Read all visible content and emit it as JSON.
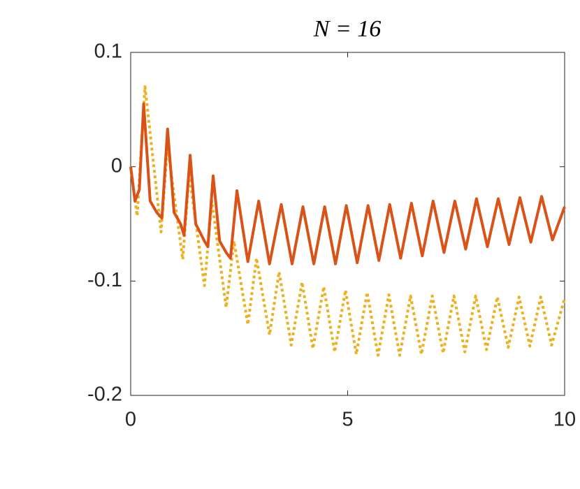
{
  "chart_data": {
    "type": "line",
    "title": "N = 16",
    "xlim": [
      0,
      10
    ],
    "xticks": [
      0,
      5,
      10
    ],
    "ylim": [
      -0.2,
      0.1
    ],
    "yticks": [
      -0.2,
      -0.1,
      0,
      0.1
    ],
    "grid": false,
    "box": true,
    "series": [
      {
        "color": "#d95319",
        "style": "solid",
        "x": [
          0,
          0.1,
          0.2,
          0.3,
          0.45,
          0.6,
          0.72,
          0.85,
          1.0,
          1.15,
          1.23,
          1.37,
          1.5,
          1.7,
          1.78,
          1.9,
          2.05,
          2.2,
          2.3,
          2.45,
          2.7,
          2.95,
          3.2,
          3.47,
          3.72,
          3.97,
          4.22,
          4.47,
          4.72,
          4.97,
          5.22,
          5.47,
          5.72,
          5.97,
          6.22,
          6.47,
          6.72,
          6.97,
          7.22,
          7.47,
          7.72,
          7.97,
          8.22,
          8.47,
          8.72,
          8.97,
          9.22,
          9.47,
          9.72,
          10
        ],
        "values": [
          0,
          -0.03,
          -0.02,
          0.055,
          -0.03,
          -0.04,
          -0.045,
          0.033,
          -0.04,
          -0.05,
          -0.06,
          0.01,
          -0.05,
          -0.065,
          -0.07,
          -0.008,
          -0.065,
          -0.075,
          -0.08,
          -0.021,
          -0.083,
          -0.03,
          -0.085,
          -0.033,
          -0.085,
          -0.035,
          -0.085,
          -0.035,
          -0.085,
          -0.034,
          -0.084,
          -0.034,
          -0.082,
          -0.033,
          -0.08,
          -0.032,
          -0.078,
          -0.03,
          -0.075,
          -0.03,
          -0.072,
          -0.028,
          -0.07,
          -0.028,
          -0.068,
          -0.027,
          -0.066,
          -0.026,
          -0.064,
          -0.035
        ]
      },
      {
        "color": "#edb120",
        "style": "dotted",
        "x": [
          0,
          0.15,
          0.33,
          0.7,
          0.85,
          1.2,
          1.35,
          1.7,
          1.87,
          2.2,
          2.38,
          2.7,
          2.9,
          3.2,
          3.42,
          3.7,
          3.95,
          4.2,
          4.45,
          4.7,
          4.95,
          5.2,
          5.45,
          5.7,
          5.95,
          6.2,
          6.45,
          6.7,
          6.95,
          7.2,
          7.45,
          7.7,
          7.95,
          8.2,
          8.45,
          8.7,
          8.95,
          9.2,
          9.45,
          9.7,
          10
        ],
        "values": [
          0,
          -0.043,
          0.07,
          -0.057,
          0.018,
          -0.081,
          -0.007,
          -0.104,
          -0.03,
          -0.123,
          -0.065,
          -0.138,
          -0.08,
          -0.147,
          -0.092,
          -0.156,
          -0.101,
          -0.159,
          -0.105,
          -0.162,
          -0.108,
          -0.164,
          -0.11,
          -0.165,
          -0.112,
          -0.165,
          -0.113,
          -0.164,
          -0.113,
          -0.163,
          -0.113,
          -0.162,
          -0.113,
          -0.16,
          -0.114,
          -0.158,
          -0.114,
          -0.157,
          -0.114,
          -0.156,
          -0.115
        ]
      }
    ]
  }
}
